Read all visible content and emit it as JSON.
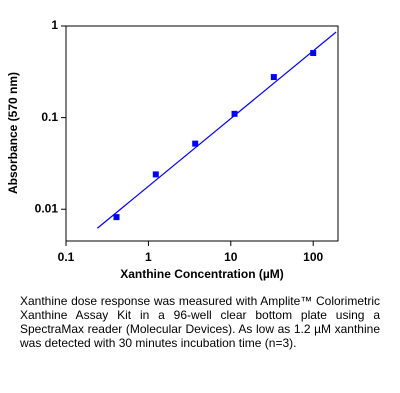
{
  "chart_data": {
    "type": "scatter",
    "x_label": "Xanthine Concentration (µM)",
    "y_label": "Absorbance (570 nm)",
    "x_scale": "log",
    "y_scale": "log",
    "xlim": [
      0.1,
      200
    ],
    "ylim": [
      0.0045,
      1
    ],
    "xticks": [
      0.1,
      1,
      10,
      100
    ],
    "yticks": [
      0.01,
      0.1,
      1
    ],
    "color": "#0000ff",
    "x": [
      0.41,
      1.23,
      3.7,
      11.1,
      33.3,
      100
    ],
    "values": [
      0.0082,
      0.024,
      0.052,
      0.11,
      0.277,
      0.507
    ],
    "fit": {
      "x": [
        0.24,
        190
      ],
      "y": [
        0.0062,
        0.86
      ]
    }
  },
  "caption": "Xanthine dose response was measured with Amplite™ Colorimetric Xanthine Assay Kit in a 96-well clear bottom plate using a SpectraMax reader (Molecular Devices). As low as 1.2 µM xanthine was detected with 30 minutes incubation time (n=3)."
}
